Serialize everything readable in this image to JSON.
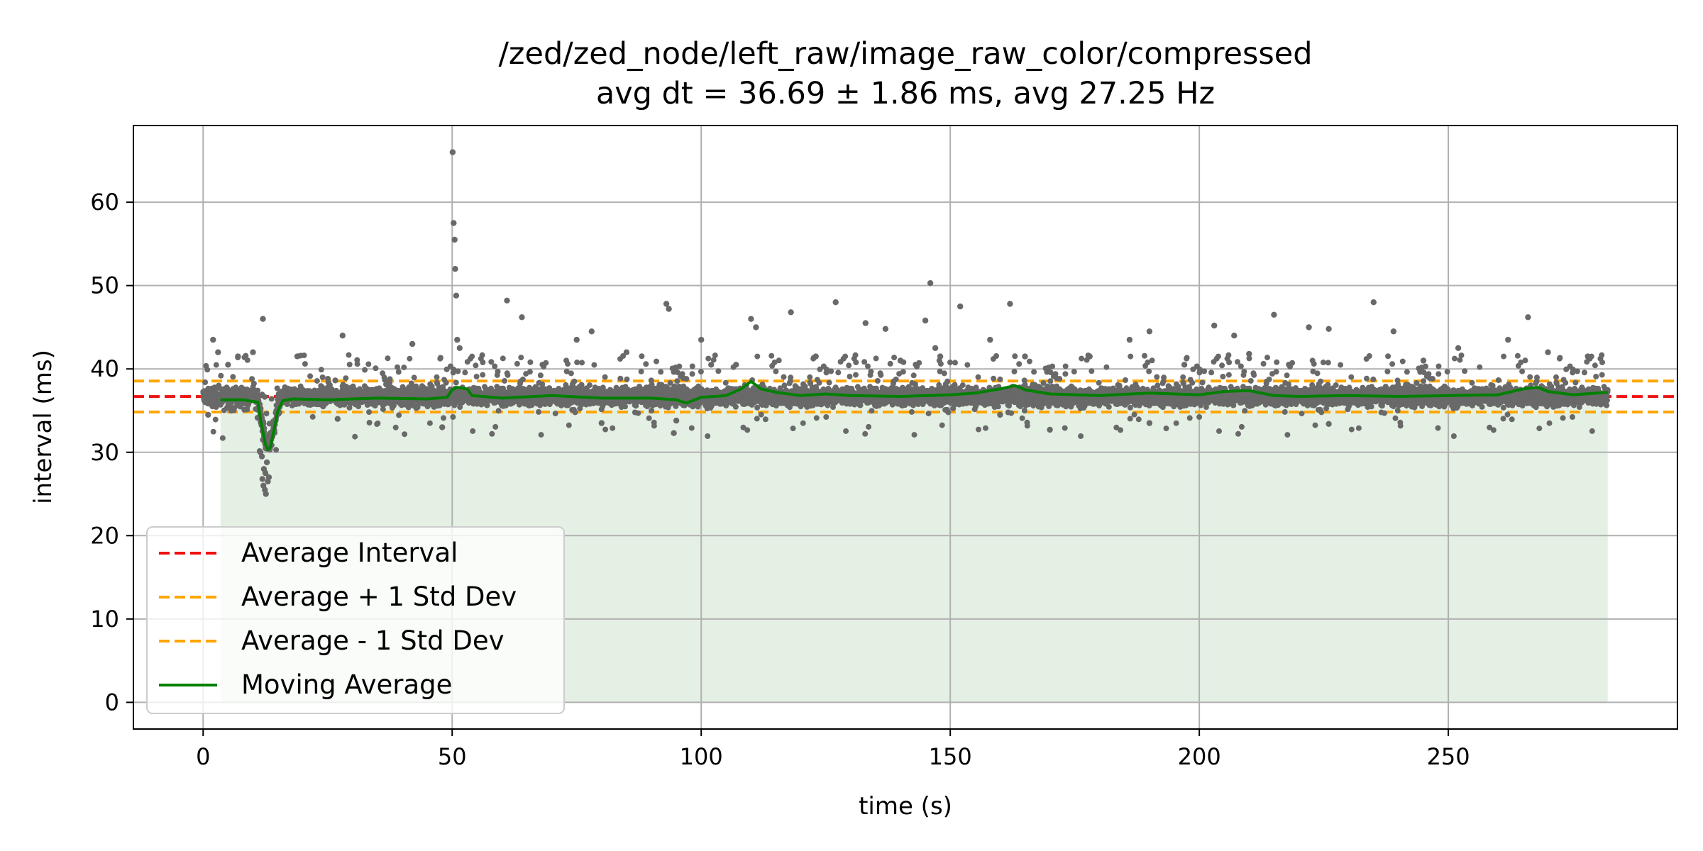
{
  "chart_data": {
    "type": "scatter",
    "title": "/zed/zed_node/left_raw/image_raw_color/compressed",
    "subtitle": "avg dt = 36.69 ± 1.86 ms, avg 27.25 Hz",
    "xlabel": "time (s)",
    "ylabel": "interval (ms)",
    "xlim": [
      -14,
      296
    ],
    "ylim": [
      -3.2,
      69.2
    ],
    "xticks": [
      0,
      50,
      100,
      150,
      200,
      250
    ],
    "yticks": [
      0,
      10,
      20,
      30,
      40,
      50,
      60
    ],
    "grid": true,
    "legend_position": "lower-left",
    "colors": {
      "points": "#696969",
      "average": "#ee1111",
      "std": "#ffa500",
      "moving_average": "#008000",
      "fill": "#e5f0e5",
      "grid": "#b0b0b0"
    },
    "reference_lines": {
      "average": 36.69,
      "plus_std": 38.55,
      "minus_std": 34.83
    },
    "series": [
      {
        "name": "Average Interval",
        "style": "dashed",
        "color": "#ee1111",
        "value": 36.69
      },
      {
        "name": "Average + 1 Std Dev",
        "style": "dashed",
        "color": "#ffa500",
        "value": 38.55
      },
      {
        "name": "Average - 1 Std Dev",
        "style": "dashed",
        "color": "#ffa500",
        "value": 34.83
      },
      {
        "name": "Moving Average",
        "style": "solid",
        "color": "#008000",
        "x": [
          3.5,
          8,
          11,
          11.5,
          12,
          12.5,
          13,
          13.5,
          14,
          15,
          16,
          18,
          25,
          35,
          45,
          49,
          50,
          51,
          53,
          54,
          60,
          70,
          80,
          90,
          95,
          97,
          100,
          105,
          108,
          110,
          112,
          115,
          120,
          125,
          130,
          140,
          150,
          155,
          160,
          163,
          165,
          170,
          180,
          190,
          200,
          205,
          210,
          215,
          220,
          230,
          240,
          250,
          260,
          265,
          268,
          270,
          275,
          282
        ],
        "values": [
          36.3,
          36.3,
          36.0,
          34.0,
          32.5,
          31.0,
          30.3,
          30.6,
          32.0,
          35.0,
          36.2,
          36.4,
          36.3,
          36.5,
          36.4,
          36.6,
          37.5,
          37.8,
          37.6,
          36.8,
          36.5,
          36.8,
          36.5,
          36.5,
          36.3,
          35.9,
          36.6,
          36.8,
          37.6,
          38.5,
          37.6,
          37.2,
          36.8,
          37.0,
          36.8,
          36.7,
          36.9,
          37.1,
          37.6,
          38.0,
          37.5,
          37.0,
          36.8,
          37.1,
          36.9,
          37.3,
          37.4,
          36.8,
          36.7,
          36.8,
          36.7,
          36.8,
          36.9,
          37.6,
          37.8,
          37.3,
          36.9,
          37.2
        ]
      }
    ],
    "shaded_area": {
      "x": [
        3.5,
        282
      ],
      "y": [
        0,
        36.69
      ]
    },
    "scatter_summary": {
      "t_start": 0,
      "t_end": 282,
      "approx_points": 7680,
      "typical_range": [
        35.5,
        38.0
      ]
    },
    "scatter_outliers": {
      "x": [
        1,
        2,
        3,
        5,
        7,
        10,
        12,
        12.2,
        12.5,
        13,
        11.8,
        12,
        12.8,
        11.5,
        12.4,
        13.2,
        12.1,
        11.9,
        12.6,
        28,
        42,
        48,
        50.1,
        50.3,
        50.5,
        50.6,
        50.8,
        51,
        51.5,
        61,
        64,
        75,
        78,
        85,
        93,
        93.5,
        94.5,
        100,
        102,
        107,
        110,
        111,
        118,
        123,
        127,
        133,
        137,
        140,
        145,
        146,
        147,
        148,
        152,
        158,
        162,
        165,
        170,
        178,
        186,
        190,
        197,
        203,
        207,
        210,
        215,
        222,
        226,
        235,
        239,
        245,
        252,
        262,
        266,
        270,
        278,
        27,
        80,
        95,
        160,
        226,
        190
      ],
      "values": [
        34.5,
        43.5,
        42.0,
        40.5,
        41.5,
        42.0,
        46.0,
        28.0,
        27.5,
        26.5,
        29.5,
        31.5,
        28.8,
        30.0,
        25.5,
        27.0,
        26.0,
        26.8,
        25.0,
        44.0,
        43.0,
        33.0,
        66.0,
        57.5,
        55.5,
        52.0,
        48.8,
        43.5,
        42.5,
        48.2,
        46.2,
        43.5,
        44.5,
        42.0,
        47.8,
        47.2,
        32.3,
        43.5,
        40.5,
        40.5,
        46.0,
        45.0,
        46.8,
        41.5,
        48.0,
        45.5,
        44.8,
        41.0,
        45.8,
        50.3,
        42.5,
        41.5,
        47.5,
        43.5,
        47.8,
        41.5,
        32.7,
        41.5,
        43.5,
        44.5,
        40.5,
        45.2,
        44.0,
        41.8,
        46.5,
        45.0,
        44.8,
        48.0,
        44.5,
        41.0,
        42.5,
        43.5,
        46.2,
        42.0,
        41.5,
        34.0,
        33.5,
        33.8,
        34.5,
        33.4,
        33.5
      ]
    }
  }
}
